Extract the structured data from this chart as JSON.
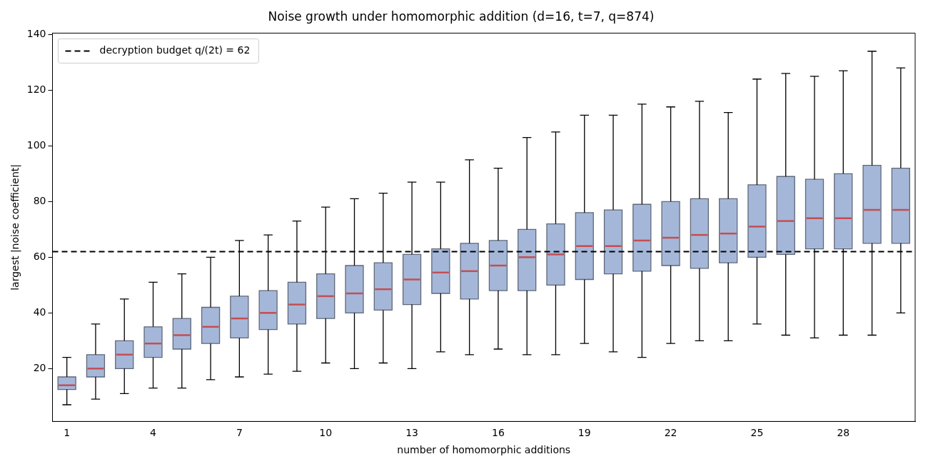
{
  "chart_data": {
    "type": "box",
    "title": "Noise growth under homomorphic addition (d=16, t=7, q=874)",
    "xlabel": "number of homomorphic additions",
    "ylabel": "largest |noise coefficient|",
    "categories": [
      "1",
      null,
      null,
      "4",
      null,
      null,
      "7",
      null,
      null,
      "10",
      null,
      null,
      "13",
      null,
      null,
      "16",
      null,
      null,
      "19",
      null,
      null,
      "22",
      null,
      null,
      "25",
      null,
      null,
      "28",
      null,
      null
    ],
    "color": "#a5b7d9",
    "boxes": [
      {
        "low": 7,
        "q1": 12.5,
        "median": 14,
        "q3": 17,
        "high": 24
      },
      {
        "low": 9,
        "q1": 17,
        "median": 20,
        "q3": 25,
        "high": 36
      },
      {
        "low": 11,
        "q1": 20,
        "median": 25,
        "q3": 30,
        "high": 45
      },
      {
        "low": 13,
        "q1": 24,
        "median": 29,
        "q3": 35,
        "high": 51
      },
      {
        "low": 13,
        "q1": 27,
        "median": 32,
        "q3": 38,
        "high": 54
      },
      {
        "low": 16,
        "q1": 29,
        "median": 35,
        "q3": 42,
        "high": 60
      },
      {
        "low": 17,
        "q1": 31,
        "median": 38,
        "q3": 46,
        "high": 66
      },
      {
        "low": 18,
        "q1": 34,
        "median": 40,
        "q3": 48,
        "high": 68
      },
      {
        "low": 19,
        "q1": 36,
        "median": 43,
        "q3": 51,
        "high": 73
      },
      {
        "low": 22,
        "q1": 38,
        "median": 46,
        "q3": 54,
        "high": 78
      },
      {
        "low": 20,
        "q1": 40,
        "median": 47,
        "q3": 57,
        "high": 81
      },
      {
        "low": 22,
        "q1": 41,
        "median": 48.5,
        "q3": 58,
        "high": 83
      },
      {
        "low": 20,
        "q1": 43,
        "median": 52,
        "q3": 61,
        "high": 87
      },
      {
        "low": 26,
        "q1": 47,
        "median": 54.5,
        "q3": 63,
        "high": 87
      },
      {
        "low": 25,
        "q1": 45,
        "median": 55,
        "q3": 65,
        "high": 95
      },
      {
        "low": 27,
        "q1": 48,
        "median": 57,
        "q3": 66,
        "high": 92
      },
      {
        "low": 25,
        "q1": 48,
        "median": 60,
        "q3": 70,
        "high": 103
      },
      {
        "low": 25,
        "q1": 50,
        "median": 61,
        "q3": 72,
        "high": 105
      },
      {
        "low": 29,
        "q1": 52,
        "median": 64,
        "q3": 76,
        "high": 111
      },
      {
        "low": 26,
        "q1": 54,
        "median": 64,
        "q3": 77,
        "high": 111
      },
      {
        "low": 24,
        "q1": 55,
        "median": 66,
        "q3": 79,
        "high": 115
      },
      {
        "low": 29,
        "q1": 57,
        "median": 67,
        "q3": 80,
        "high": 114
      },
      {
        "low": 30,
        "q1": 56,
        "median": 68,
        "q3": 81,
        "high": 116
      },
      {
        "low": 30,
        "q1": 58,
        "median": 68.5,
        "q3": 81,
        "high": 112
      },
      {
        "low": 36,
        "q1": 60,
        "median": 71,
        "q3": 86,
        "high": 124
      },
      {
        "low": 32,
        "q1": 61,
        "median": 73,
        "q3": 89,
        "high": 126
      },
      {
        "low": 31,
        "q1": 63,
        "median": 74,
        "q3": 88,
        "high": 125
      },
      {
        "low": 32,
        "q1": 63,
        "median": 74,
        "q3": 90,
        "high": 127
      },
      {
        "low": 32,
        "q1": 65,
        "median": 77,
        "q3": 93,
        "high": 134
      },
      {
        "low": 40,
        "q1": 65,
        "median": 77,
        "q3": 92,
        "high": 128
      }
    ],
    "ylim": [
      1,
      140.5
    ],
    "yticks": [
      20,
      40,
      60,
      80,
      100,
      120,
      140
    ],
    "ref_lines": [
      {
        "axis": "y",
        "value": 62,
        "label": "decryption budget q/(2t) = 62",
        "color": "#000000",
        "line_style": "dashed"
      }
    ],
    "legend": "top left",
    "grid": false
  }
}
